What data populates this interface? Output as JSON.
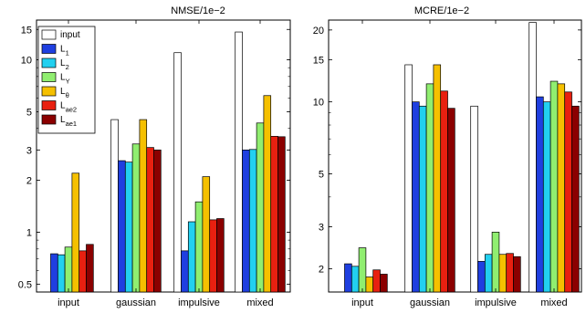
{
  "chart_data": [
    {
      "type": "bar",
      "title": "NMSE/1e−2",
      "yscale": "log",
      "ylim": [
        0.45,
        17
      ],
      "yticks": [
        0.5,
        1,
        2,
        3,
        5,
        10,
        15
      ],
      "categories": [
        "input",
        "gaussian",
        "impulsive",
        "mixed"
      ],
      "legend": "top-left",
      "series": [
        {
          "name": "input",
          "color": "#ffffff",
          "values": [
            null,
            4.5,
            11.0,
            14.5
          ]
        },
        {
          "name": "L1",
          "color": "#1f3fe0",
          "values": [
            0.75,
            2.6,
            0.78,
            3.0
          ]
        },
        {
          "name": "L2",
          "color": "#22d0f0",
          "values": [
            0.74,
            2.55,
            1.15,
            3.02
          ]
        },
        {
          "name": "LY",
          "color": "#90ee70",
          "values": [
            0.82,
            3.25,
            1.5,
            4.3
          ]
        },
        {
          "name": "Lθ",
          "color": "#f5c000",
          "values": [
            2.2,
            4.5,
            2.1,
            6.2
          ]
        },
        {
          "name": "Lae2",
          "color": "#e82010",
          "values": [
            0.78,
            3.1,
            1.18,
            3.6
          ]
        },
        {
          "name": "Lae1",
          "color": "#8b0000",
          "values": [
            0.85,
            3.0,
            1.2,
            3.58
          ]
        }
      ]
    },
    {
      "type": "bar",
      "title": "MCRE/1e−2",
      "yscale": "log",
      "ylim": [
        1.6,
        22
      ],
      "yticks": [
        2,
        3,
        5,
        10,
        15,
        20
      ],
      "categories": [
        "input",
        "gaussian",
        "impulsive",
        "mixed"
      ],
      "series": [
        {
          "name": "input",
          "color": "#ffffff",
          "values": [
            null,
            14.3,
            9.6,
            21.5
          ]
        },
        {
          "name": "L1",
          "color": "#1f3fe0",
          "values": [
            2.1,
            10.0,
            2.15,
            10.5
          ]
        },
        {
          "name": "L2",
          "color": "#22d0f0",
          "values": [
            2.05,
            9.6,
            2.3,
            10.0
          ]
        },
        {
          "name": "LY",
          "color": "#90ee70",
          "values": [
            2.45,
            11.9,
            2.85,
            12.2
          ]
        },
        {
          "name": "Lθ",
          "color": "#f5c000",
          "values": [
            1.85,
            14.3,
            2.3,
            11.9
          ]
        },
        {
          "name": "Lae2",
          "color": "#e82010",
          "values": [
            1.98,
            11.1,
            2.32,
            11.0
          ]
        },
        {
          "name": "Lae1",
          "color": "#8b0000",
          "values": [
            1.9,
            9.4,
            2.25,
            9.6
          ]
        }
      ]
    }
  ],
  "legend_entries": [
    {
      "main": "input",
      "sub": ""
    },
    {
      "main": "L",
      "sub": "1"
    },
    {
      "main": "L",
      "sub": "2"
    },
    {
      "main": "L",
      "sub": "Y"
    },
    {
      "main": "L",
      "sub": "θ"
    },
    {
      "main": "L",
      "sub": "ae2"
    },
    {
      "main": "L",
      "sub": "ae1"
    }
  ]
}
